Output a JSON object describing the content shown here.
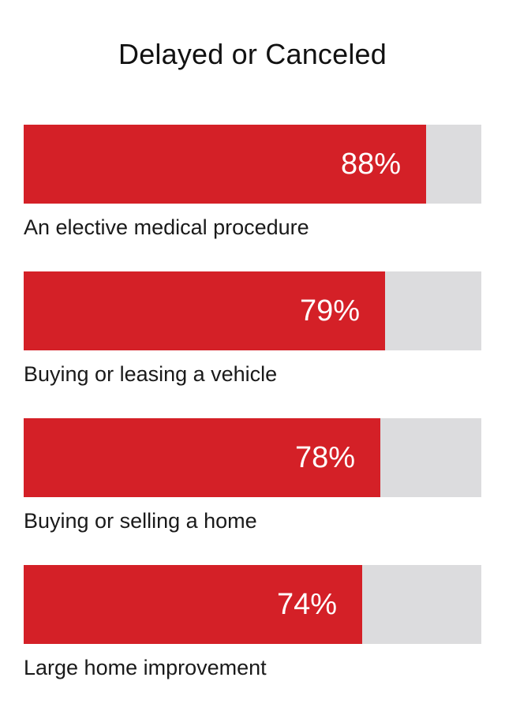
{
  "chart_data": {
    "type": "bar",
    "orientation": "horizontal",
    "title": "Delayed or Canceled",
    "categories": [
      "An elective medical procedure",
      "Buying or leasing a vehicle",
      "Buying or selling a home",
      "Large home improvement"
    ],
    "values": [
      88,
      79,
      78,
      74
    ],
    "value_labels": [
      "88%",
      "79%",
      "78%",
      "74%"
    ],
    "xlim": [
      0,
      100
    ],
    "unit": "%",
    "grid": false,
    "legend": "none",
    "colors": {
      "bar": "#d42027",
      "track": "#dcdcde",
      "value_text": "#ffffff",
      "label_text": "#1a1a1a"
    }
  }
}
